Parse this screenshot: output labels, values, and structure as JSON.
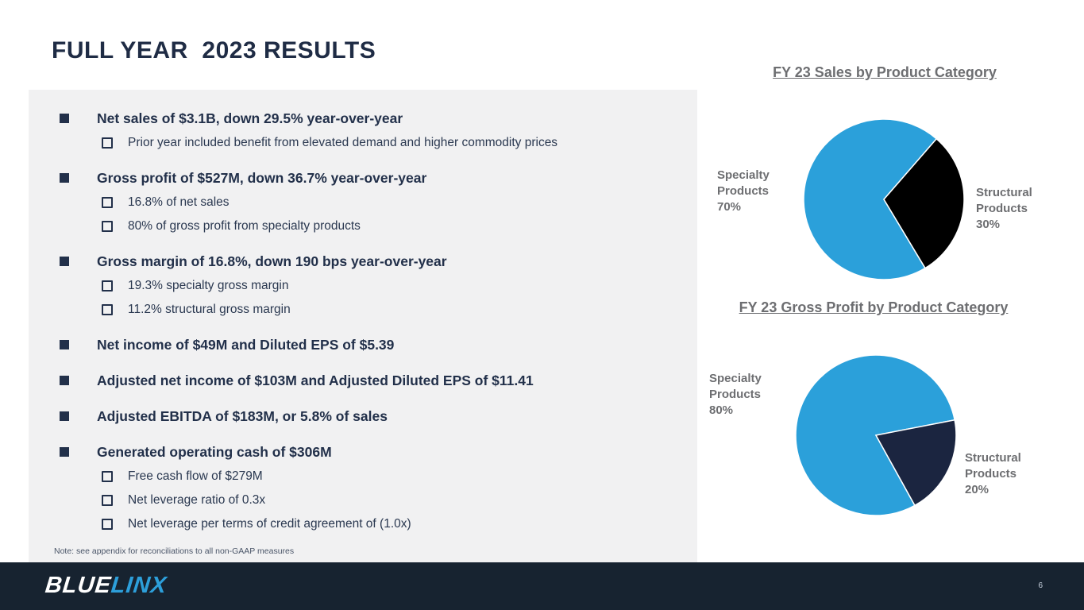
{
  "slide": {
    "title": "FULL YEAR  2023 RESULTS",
    "note": "Note: see appendix for reconciliations to all non-GAAP measures"
  },
  "bullets": {
    "groups": [
      {
        "main": "Net sales of $3.1B, down 29.5% year-over-year",
        "subs": [
          "Prior year included benefit from elevated demand and higher commodity prices"
        ]
      },
      {
        "main": "Gross profit of $527M, down 36.7% year-over-year",
        "subs": [
          "16.8% of net sales",
          "80% of gross profit from specialty products"
        ]
      },
      {
        "main": "Gross margin of 16.8%, down 190 bps year-over-year",
        "subs": [
          "19.3% specialty gross margin",
          "11.2% structural gross margin"
        ]
      },
      {
        "main": "Net income of $49M and Diluted EPS of $5.39",
        "subs": []
      },
      {
        "main": "Adjusted net income of $103M and Adjusted Diluted EPS of $11.41",
        "subs": []
      },
      {
        "main": "Adjusted EBITDA of $183M, or 5.8% of sales",
        "subs": []
      },
      {
        "main": "Generated operating cash of $306M",
        "subs": [
          "Free cash flow of $279M",
          "Net leverage ratio of 0.3x",
          "Net leverage per terms of credit agreement of (1.0x)"
        ]
      }
    ]
  },
  "chart_data": [
    {
      "type": "pie",
      "title": "FY 23 Sales by Product Category",
      "legend_position": "side-labels",
      "slices": [
        {
          "label": "Specialty Products",
          "value": 70,
          "color": "#2BA0DA",
          "start_angle": 149
        },
        {
          "label": "Structural Products",
          "value": 30,
          "color": "#000000",
          "start_angle": 41
        }
      ]
    },
    {
      "type": "pie",
      "title": "FY 23 Gross Profit by Product Category",
      "legend_position": "side-labels",
      "slices": [
        {
          "label": "Specialty Products",
          "value": 80,
          "color": "#2BA0DA",
          "start_angle": 151
        },
        {
          "label": "Structural Products",
          "value": 20,
          "color": "#1B2540",
          "start_angle": 79
        }
      ]
    }
  ],
  "footer": {
    "logo_part1": "BLUE",
    "logo_part2": "LINX",
    "page_number": "6"
  },
  "colors": {
    "brand_blue": "#2BA0DA",
    "brand_navy": "#22304A",
    "footer_navy": "#172330",
    "panel_gray": "#F1F1F2",
    "chart_text_gray": "#6D6E71",
    "pie_black": "#000000",
    "pie_dark_navy": "#1B2540"
  }
}
